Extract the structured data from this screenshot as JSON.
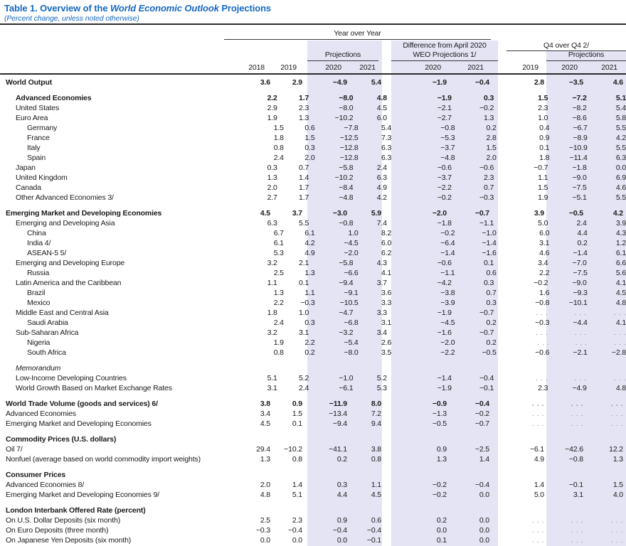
{
  "title": {
    "prefix": "Table 1. Overview of the ",
    "emphasis": "World Economic Outlook",
    "suffix": " Projections"
  },
  "subtitle": "(Percent change, unless noted otherwise)",
  "colors": {
    "accent_blue": "#1568c0",
    "highlight_lavender": "#e4e4f5",
    "text": "#1a1a1a",
    "dots_gray": "#8b8b9b"
  },
  "header": {
    "group_year_over_year": "Year over Year",
    "group_difference_line1": "Difference from April 2020",
    "group_difference_line2": "WEO Projections 1/",
    "group_q4": "Q4 over Q4 2/",
    "projections_yoy": "Projections",
    "projections_q4": "Projections",
    "years": [
      "2018",
      "2019",
      "2020",
      "2021",
      "2020",
      "2021",
      "2019",
      "2020",
      "2021"
    ]
  },
  "table": {
    "rows": [
      {
        "label": "World Output",
        "indent": 0,
        "bold": true,
        "italic": false,
        "gap": false,
        "values": [
          "3.6",
          "2.9",
          "−4.9",
          "5.4",
          "−1.9",
          "−0.4",
          "2.8",
          "−3.5",
          "4.6"
        ]
      },
      {
        "label": "Advanced Economies",
        "indent": 1,
        "bold": true,
        "italic": false,
        "gap": true,
        "values": [
          "2.2",
          "1.7",
          "−8.0",
          "4.8",
          "−1.9",
          "0.3",
          "1.5",
          "−7.2",
          "5.1"
        ]
      },
      {
        "label": "United States",
        "indent": 1,
        "bold": false,
        "italic": false,
        "gap": false,
        "values": [
          "2.9",
          "2.3",
          "−8.0",
          "4.5",
          "−2.1",
          "−0.2",
          "2.3",
          "−8.2",
          "5.4"
        ]
      },
      {
        "label": "Euro Area",
        "indent": 1,
        "bold": false,
        "italic": false,
        "gap": false,
        "values": [
          "1.9",
          "1.3",
          "−10.2",
          "6.0",
          "−2.7",
          "1.3",
          "1.0",
          "−8.6",
          "5.8"
        ]
      },
      {
        "label": "Germany",
        "indent": 2,
        "bold": false,
        "italic": false,
        "gap": false,
        "values": [
          "1.5",
          "0.6",
          "−7.8",
          "5.4",
          "−0.8",
          "0.2",
          "0.4",
          "−6.7",
          "5.5"
        ]
      },
      {
        "label": "France",
        "indent": 2,
        "bold": false,
        "italic": false,
        "gap": false,
        "values": [
          "1.8",
          "1.5",
          "−12.5",
          "7.3",
          "−5.3",
          "2.8",
          "0.9",
          "−8.9",
          "4.2"
        ]
      },
      {
        "label": "Italy",
        "indent": 2,
        "bold": false,
        "italic": false,
        "gap": false,
        "values": [
          "0.8",
          "0.3",
          "−12.8",
          "6.3",
          "−3.7",
          "1.5",
          "0.1",
          "−10.9",
          "5.5"
        ]
      },
      {
        "label": "Spain",
        "indent": 2,
        "bold": false,
        "italic": false,
        "gap": false,
        "values": [
          "2.4",
          "2.0",
          "−12.8",
          "6.3",
          "−4.8",
          "2.0",
          "1.8",
          "−11.4",
          "6.3"
        ]
      },
      {
        "label": "Japan",
        "indent": 1,
        "bold": false,
        "italic": false,
        "gap": false,
        "values": [
          "0.3",
          "0.7",
          "−5.8",
          "2.4",
          "−0.6",
          "−0.6",
          "−0.7",
          "−1.8",
          "0.0"
        ]
      },
      {
        "label": "United Kingdom",
        "indent": 1,
        "bold": false,
        "italic": false,
        "gap": false,
        "values": [
          "1.3",
          "1.4",
          "−10.2",
          "6.3",
          "−3.7",
          "2.3",
          "1.1",
          "−9.0",
          "6.9"
        ]
      },
      {
        "label": "Canada",
        "indent": 1,
        "bold": false,
        "italic": false,
        "gap": false,
        "values": [
          "2.0",
          "1.7",
          "−8.4",
          "4.9",
          "−2.2",
          "0.7",
          "1.5",
          "−7.5",
          "4.6"
        ]
      },
      {
        "label": "Other Advanced Economies 3/",
        "indent": 1,
        "bold": false,
        "italic": false,
        "gap": false,
        "values": [
          "2.7",
          "1.7",
          "−4.8",
          "4.2",
          "−0.2",
          "−0.3",
          "1.9",
          "−5.1",
          "5.5"
        ]
      },
      {
        "label": "Emerging Market and Developing Economies",
        "indent": 0,
        "bold": true,
        "italic": false,
        "gap": true,
        "values": [
          "4.5",
          "3.7",
          "−3.0",
          "5.9",
          "−2.0",
          "−0.7",
          "3.9",
          "−0.5",
          "4.2"
        ]
      },
      {
        "label": "Emerging and Developing Asia",
        "indent": 1,
        "bold": false,
        "italic": false,
        "gap": false,
        "values": [
          "6.3",
          "5.5",
          "−0.8",
          "7.4",
          "−1.8",
          "−1.1",
          "5.0",
          "2.4",
          "3.9"
        ]
      },
      {
        "label": "China",
        "indent": 2,
        "bold": false,
        "italic": false,
        "gap": false,
        "values": [
          "6.7",
          "6.1",
          "1.0",
          "8.2",
          "−0.2",
          "−1.0",
          "6.0",
          "4.4",
          "4.3"
        ]
      },
      {
        "label": "India 4/",
        "indent": 2,
        "bold": false,
        "italic": false,
        "gap": false,
        "values": [
          "6.1",
          "4.2",
          "−4.5",
          "6.0",
          "−6.4",
          "−1.4",
          "3.1",
          "0.2",
          "1.2"
        ]
      },
      {
        "label": "ASEAN-5 5/",
        "indent": 2,
        "bold": false,
        "italic": false,
        "gap": false,
        "values": [
          "5.3",
          "4.9",
          "−2.0",
          "6.2",
          "−1.4",
          "−1.6",
          "4.6",
          "−1.4",
          "6.1"
        ]
      },
      {
        "label": "Emerging and Developing Europe",
        "indent": 1,
        "bold": false,
        "italic": false,
        "gap": false,
        "values": [
          "3.2",
          "2.1",
          "−5.8",
          "4.3",
          "−0.6",
          "0.1",
          "3.4",
          "−7.0",
          "6.6"
        ]
      },
      {
        "label": "Russia",
        "indent": 2,
        "bold": false,
        "italic": false,
        "gap": false,
        "values": [
          "2.5",
          "1.3",
          "−6.6",
          "4.1",
          "−1.1",
          "0.6",
          "2.2",
          "−7.5",
          "5.6"
        ]
      },
      {
        "label": "Latin America and the Caribbean",
        "indent": 1,
        "bold": false,
        "italic": false,
        "gap": false,
        "values": [
          "1.1",
          "0.1",
          "−9.4",
          "3.7",
          "−4.2",
          "0.3",
          "−0.2",
          "−9.0",
          "4.1"
        ]
      },
      {
        "label": "Brazil",
        "indent": 2,
        "bold": false,
        "italic": false,
        "gap": false,
        "values": [
          "1.3",
          "1.1",
          "−9.1",
          "3.6",
          "−3.8",
          "0.7",
          "1.6",
          "−9.3",
          "4.5"
        ]
      },
      {
        "label": "Mexico",
        "indent": 2,
        "bold": false,
        "italic": false,
        "gap": false,
        "values": [
          "2.2",
          "−0.3",
          "−10.5",
          "3.3",
          "−3.9",
          "0.3",
          "−0.8",
          "−10.1",
          "4.8"
        ]
      },
      {
        "label": "Middle East and Central Asia",
        "indent": 1,
        "bold": false,
        "italic": false,
        "gap": false,
        "values": [
          "1.8",
          "1.0",
          "−4.7",
          "3.3",
          "−1.9",
          "−0.7",
          ". . .",
          ". . .",
          ". . ."
        ]
      },
      {
        "label": "Saudi Arabia",
        "indent": 2,
        "bold": false,
        "italic": false,
        "gap": false,
        "values": [
          "2.4",
          "0.3",
          "−6.8",
          "3.1",
          "−4.5",
          "0.2",
          "−0.3",
          "−4.4",
          "4.1"
        ]
      },
      {
        "label": "Sub-Saharan Africa",
        "indent": 1,
        "bold": false,
        "italic": false,
        "gap": false,
        "values": [
          "3.2",
          "3.1",
          "−3.2",
          "3.4",
          "−1.6",
          "−0.7",
          ". . .",
          ". . .",
          ". . ."
        ]
      },
      {
        "label": "Nigeria",
        "indent": 2,
        "bold": false,
        "italic": false,
        "gap": false,
        "values": [
          "1.9",
          "2.2",
          "−5.4",
          "2.6",
          "−2.0",
          "0.2",
          ". . .",
          ". . .",
          ". . ."
        ]
      },
      {
        "label": "South Africa",
        "indent": 2,
        "bold": false,
        "italic": false,
        "gap": false,
        "values": [
          "0.8",
          "0.2",
          "−8.0",
          "3.5",
          "−2.2",
          "−0.5",
          "−0.6",
          "−2.1",
          "−2.8"
        ]
      },
      {
        "label": "Memorandum",
        "indent": 1,
        "bold": false,
        "italic": true,
        "gap": true,
        "values": null
      },
      {
        "label": "Low-Income Developing Countries",
        "indent": 1,
        "bold": false,
        "italic": false,
        "gap": false,
        "values": [
          "5.1",
          "5.2",
          "−1.0",
          "5.2",
          "−1.4",
          "−0.4",
          ". . .",
          ". . .",
          ". . ."
        ]
      },
      {
        "label": "World Growth Based on Market Exchange Rates",
        "indent": 1,
        "bold": false,
        "italic": false,
        "gap": false,
        "values": [
          "3.1",
          "2.4",
          "−6.1",
          "5.3",
          "−1.9",
          "−0.1",
          "2.3",
          "−4.9",
          "4.8"
        ]
      },
      {
        "label": "World Trade Volume (goods and services) 6/",
        "indent": 0,
        "bold": true,
        "italic": false,
        "gap": true,
        "values": [
          "3.8",
          "0.9",
          "−11.9",
          "8.0",
          "−0.9",
          "−0.4",
          ". . .",
          ". . .",
          ". . ."
        ]
      },
      {
        "label": "Advanced Economies",
        "indent": 0,
        "bold": false,
        "italic": false,
        "gap": false,
        "values": [
          "3.4",
          "1.5",
          "−13.4",
          "7.2",
          "−1.3",
          "−0.2",
          ". . .",
          ". . .",
          ". . ."
        ]
      },
      {
        "label": "Emerging Market and Developing Economies",
        "indent": 0,
        "bold": false,
        "italic": false,
        "gap": false,
        "values": [
          "4.5",
          "0.1",
          "−9.4",
          "9.4",
          "−0.5",
          "−0.7",
          ". . .",
          ". . .",
          ". . ."
        ]
      },
      {
        "label": "Commodity Prices (U.S. dollars)",
        "indent": 0,
        "bold": true,
        "italic": false,
        "gap": true,
        "values": null
      },
      {
        "label": "Oil 7/",
        "indent": 0,
        "bold": false,
        "italic": false,
        "gap": false,
        "values": [
          "29.4",
          "−10.2",
          "−41.1",
          "3.8",
          "0.9",
          "−2.5",
          "−6.1",
          "−42.6",
          "12.2"
        ]
      },
      {
        "label": "Nonfuel (average based on world commodity import weights)",
        "indent": 0,
        "bold": false,
        "italic": false,
        "gap": false,
        "values": [
          "1.3",
          "0.8",
          "0.2",
          "0.8",
          "1.3",
          "1.4",
          "4.9",
          "−0.8",
          "1.3"
        ]
      },
      {
        "label": "Consumer Prices",
        "indent": 0,
        "bold": true,
        "italic": false,
        "gap": true,
        "values": null
      },
      {
        "label": "Advanced Economies 8/",
        "indent": 0,
        "bold": false,
        "italic": false,
        "gap": false,
        "values": [
          "2.0",
          "1.4",
          "0.3",
          "1.1",
          "−0.2",
          "−0.4",
          "1.4",
          "−0.1",
          "1.5"
        ]
      },
      {
        "label": "Emerging Market and Developing Economies 9/",
        "indent": 0,
        "bold": false,
        "italic": false,
        "gap": false,
        "values": [
          "4.8",
          "5.1",
          "4.4",
          "4.5",
          "−0.2",
          "0.0",
          "5.0",
          "3.1",
          "4.0"
        ]
      },
      {
        "label": "London Interbank Offered Rate (percent)",
        "indent": 0,
        "bold": true,
        "italic": false,
        "gap": true,
        "values": null
      },
      {
        "label": "On U.S. Dollar Deposits (six month)",
        "indent": 0,
        "bold": false,
        "italic": false,
        "gap": false,
        "values": [
          "2.5",
          "2.3",
          "0.9",
          "0.6",
          "0.2",
          "0.0",
          ". . .",
          ". . .",
          ". . ."
        ]
      },
      {
        "label": "On Euro Deposits (three month)",
        "indent": 0,
        "bold": false,
        "italic": false,
        "gap": false,
        "values": [
          "−0.3",
          "−0.4",
          "−0.4",
          "−0.4",
          "0.0",
          "0.0",
          ". . .",
          ". . .",
          ". . ."
        ]
      },
      {
        "label": "On Japanese Yen Deposits (six month)",
        "indent": 0,
        "bold": false,
        "italic": false,
        "gap": false,
        "values": [
          "0.0",
          "0.0",
          "0.0",
          "−0.1",
          "0.1",
          "0.0",
          ". . .",
          ". . .",
          ". . ."
        ]
      }
    ]
  }
}
